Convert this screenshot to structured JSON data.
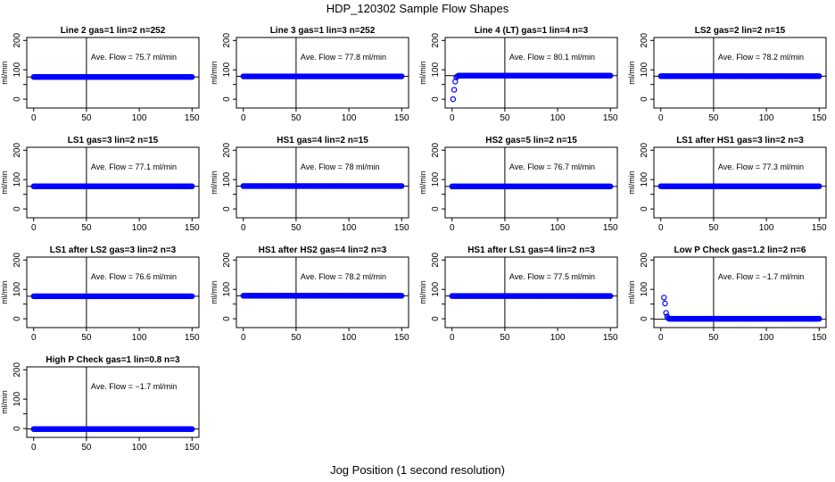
{
  "title": "HDP_120302  Sample Flow Shapes",
  "xlabel": "Jog Position (1 second resolution)",
  "chart_data": [
    {
      "type": "scatter",
      "title": "Line 2 gas=1 lin=2 n=252",
      "annotation": "Ave. Flow = 75.7  ml/min",
      "ylabel": "ml/min",
      "xlim": [
        0,
        150
      ],
      "ylim": [
        -30,
        210
      ],
      "xticks": [
        0,
        50,
        100,
        150
      ],
      "yticks": [
        0,
        100,
        200
      ],
      "yticks_minor": [
        50
      ],
      "vline": 50,
      "hline": 75.7,
      "shape": "flat",
      "flat_value": 75.7,
      "ramp": [],
      "point_color": "#0000ff"
    },
    {
      "type": "scatter",
      "title": "Line 3 gas=1 lin=3 n=252",
      "annotation": "Ave. Flow = 77.8  ml/min",
      "ylabel": "ml/min",
      "xlim": [
        0,
        150
      ],
      "ylim": [
        -30,
        210
      ],
      "xticks": [
        0,
        50,
        100,
        150
      ],
      "yticks": [
        0,
        100,
        200
      ],
      "yticks_minor": [
        50
      ],
      "vline": 50,
      "hline": 77.8,
      "shape": "flat",
      "flat_value": 77.8,
      "ramp": [],
      "point_color": "#0000ff"
    },
    {
      "type": "scatter",
      "title": "Line 4 (LT) gas=1 lin=4 n=3",
      "annotation": "Ave. Flow = 80.1  ml/min",
      "ylabel": "ml/min",
      "xlim": [
        0,
        150
      ],
      "ylim": [
        -30,
        210
      ],
      "xticks": [
        0,
        50,
        100,
        150
      ],
      "yticks": [
        0,
        100,
        200
      ],
      "yticks_minor": [
        50
      ],
      "vline": 50,
      "hline": 80.1,
      "shape": "ramp-up",
      "flat_value": 80.1,
      "ramp": [
        [
          1,
          0
        ],
        [
          2,
          32
        ],
        [
          3,
          60
        ],
        [
          4,
          74
        ],
        [
          5,
          78
        ]
      ],
      "point_color": "#0000ff"
    },
    {
      "type": "scatter",
      "title": "LS2 gas=2 lin=2 n=15",
      "annotation": "Ave. Flow = 78.2  ml/min",
      "ylabel": "ml/min",
      "xlim": [
        0,
        150
      ],
      "ylim": [
        -30,
        210
      ],
      "xticks": [
        0,
        50,
        100,
        150
      ],
      "yticks": [
        0,
        100,
        200
      ],
      "yticks_minor": [
        50
      ],
      "vline": 50,
      "hline": 78.2,
      "shape": "flat",
      "flat_value": 78.2,
      "ramp": [],
      "point_color": "#0000ff"
    },
    {
      "type": "scatter",
      "title": "LS1 gas=3 lin=2 n=15",
      "annotation": "Ave. Flow = 77.1  ml/min",
      "ylabel": "ml/min",
      "xlim": [
        0,
        150
      ],
      "ylim": [
        -30,
        210
      ],
      "xticks": [
        0,
        50,
        100,
        150
      ],
      "yticks": [
        0,
        100,
        200
      ],
      "yticks_minor": [
        50
      ],
      "vline": 50,
      "hline": 77.1,
      "shape": "flat",
      "flat_value": 77.1,
      "ramp": [],
      "point_color": "#0000ff"
    },
    {
      "type": "scatter",
      "title": "HS1 gas=4 lin=2 n=15",
      "annotation": "Ave. Flow = 78  ml/min",
      "ylabel": "ml/min",
      "xlim": [
        0,
        150
      ],
      "ylim": [
        -30,
        210
      ],
      "xticks": [
        0,
        50,
        100,
        150
      ],
      "yticks": [
        0,
        100,
        200
      ],
      "yticks_minor": [
        50
      ],
      "vline": 50,
      "hline": 78,
      "shape": "flat",
      "flat_value": 78,
      "ramp": [],
      "point_color": "#0000ff"
    },
    {
      "type": "scatter",
      "title": "HS2 gas=5 lin=2 n=15",
      "annotation": "Ave. Flow = 76.7  ml/min",
      "ylabel": "ml/min",
      "xlim": [
        0,
        150
      ],
      "ylim": [
        -30,
        210
      ],
      "xticks": [
        0,
        50,
        100,
        150
      ],
      "yticks": [
        0,
        100,
        200
      ],
      "yticks_minor": [
        50
      ],
      "vline": 50,
      "hline": 76.7,
      "shape": "flat",
      "flat_value": 76.7,
      "ramp": [],
      "point_color": "#0000ff"
    },
    {
      "type": "scatter",
      "title": "LS1 after HS1 gas=3 lin=2 n=3",
      "annotation": "Ave. Flow = 77.3  ml/min",
      "ylabel": "ml/min",
      "xlim": [
        0,
        150
      ],
      "ylim": [
        -30,
        210
      ],
      "xticks": [
        0,
        50,
        100,
        150
      ],
      "yticks": [
        0,
        100,
        200
      ],
      "yticks_minor": [
        50
      ],
      "vline": 50,
      "hline": 77.3,
      "shape": "flat",
      "flat_value": 77.3,
      "ramp": [],
      "point_color": "#0000ff"
    },
    {
      "type": "scatter",
      "title": "LS1 after LS2 gas=3 lin=2 n=3",
      "annotation": "Ave. Flow = 76.6  ml/min",
      "ylabel": "ml/min",
      "xlim": [
        0,
        150
      ],
      "ylim": [
        -30,
        210
      ],
      "xticks": [
        0,
        50,
        100,
        150
      ],
      "yticks": [
        0,
        100,
        200
      ],
      "yticks_minor": [
        50
      ],
      "vline": 50,
      "hline": 76.6,
      "shape": "flat",
      "flat_value": 76.6,
      "ramp": [],
      "point_color": "#0000ff"
    },
    {
      "type": "scatter",
      "title": "HS1 after HS2 gas=4 lin=2 n=3",
      "annotation": "Ave. Flow = 78.2  ml/min",
      "ylabel": "ml/min",
      "xlim": [
        0,
        150
      ],
      "ylim": [
        -30,
        210
      ],
      "xticks": [
        0,
        50,
        100,
        150
      ],
      "yticks": [
        0,
        100,
        200
      ],
      "yticks_minor": [
        50
      ],
      "vline": 50,
      "hline": 78.2,
      "shape": "flat",
      "flat_value": 78.2,
      "ramp": [],
      "point_color": "#0000ff"
    },
    {
      "type": "scatter",
      "title": "HS1 after LS1 gas=4 lin=2 n=3",
      "annotation": "Ave. Flow = 77.5  ml/min",
      "ylabel": "ml/min",
      "xlim": [
        0,
        150
      ],
      "ylim": [
        -30,
        210
      ],
      "xticks": [
        0,
        50,
        100,
        150
      ],
      "yticks": [
        0,
        100,
        200
      ],
      "yticks_minor": [
        50
      ],
      "vline": 50,
      "hline": 77.5,
      "shape": "flat",
      "flat_value": 77.5,
      "ramp": [],
      "point_color": "#0000ff"
    },
    {
      "type": "scatter",
      "title": "Low P Check gas=1.2 lin=2 n=6",
      "annotation": "Ave. Flow = −1.7  ml/min",
      "ylabel": "ml/min",
      "xlim": [
        0,
        150
      ],
      "ylim": [
        -30,
        210
      ],
      "xticks": [
        0,
        50,
        100,
        150
      ],
      "yticks": [
        0,
        100,
        200
      ],
      "yticks_minor": [
        50
      ],
      "vline": 50,
      "hline": -1.7,
      "shape": "decay",
      "flat_value": -1.7,
      "ramp": [
        [
          3,
          72
        ],
        [
          4,
          52
        ],
        [
          5,
          20
        ],
        [
          6,
          8
        ],
        [
          7,
          2
        ]
      ],
      "point_color": "#0000ff"
    },
    {
      "type": "scatter",
      "title": "High P Check gas=1 lin=0.8 n=3",
      "annotation": "Ave. Flow = −1.7  ml/min",
      "ylabel": "ml/min",
      "xlim": [
        0,
        150
      ],
      "ylim": [
        -30,
        210
      ],
      "xticks": [
        0,
        50,
        100,
        150
      ],
      "yticks": [
        0,
        100,
        200
      ],
      "yticks_minor": [
        50
      ],
      "vline": 50,
      "hline": -1.7,
      "shape": "flat",
      "flat_value": -1.7,
      "ramp": [],
      "point_color": "#0000ff"
    }
  ]
}
